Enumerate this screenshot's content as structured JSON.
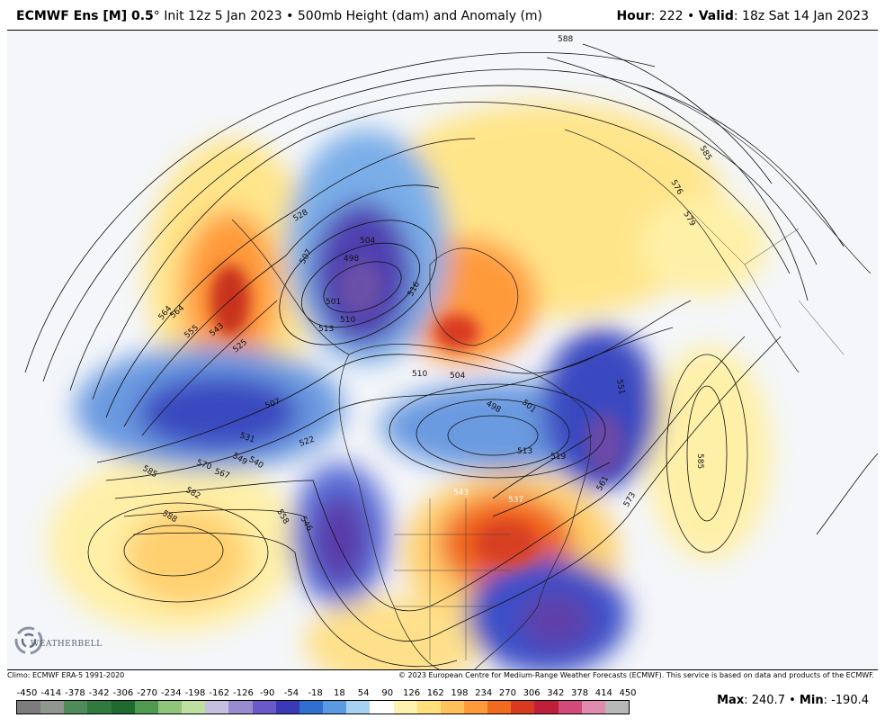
{
  "header": {
    "model": "ECMWF Ens [M] 0.5",
    "degree": "°",
    "init": "Init 12z 5 Jan 2023",
    "sep": "•",
    "field": "500mb Height (dam) and Anomaly (m)",
    "hour_label": "Hour",
    "hour_value": ": 222",
    "valid_label": "Valid",
    "valid_value": ": 18z Sat 14 Jan 2023"
  },
  "credits": {
    "climo": "Climo: ECMWF ERA-5 1991-2020",
    "copyright": "© 2023 European Centre for Medium-Range Weather Forecasts (ECMWF). This service is based on data and products of the ECMWF."
  },
  "logo": {
    "text": "WEATHERBELL"
  },
  "stats": {
    "max_label": "Max",
    "max_value": ": 240.7",
    "sep": "•",
    "min_label": "Min",
    "min_value": ": -190.4"
  },
  "colorbar": {
    "ticks": [
      "-450",
      "-414",
      "-378",
      "-342",
      "-306",
      "-270",
      "-234",
      "-198",
      "-162",
      "-126",
      "-90",
      "-54",
      "-18",
      "18",
      "54",
      "90",
      "126",
      "162",
      "198",
      "234",
      "270",
      "306",
      "342",
      "378",
      "414",
      "450"
    ],
    "colors": [
      "#7c7c7c",
      "#8f978f",
      "#4f8a5a",
      "#2f7a3f",
      "#1f6a2f",
      "#4f9a4f",
      "#8fc47a",
      "#bde0a0",
      "#c6c0e0",
      "#9a8ad0",
      "#6a5ac8",
      "#3a3ab8",
      "#2f6fd0",
      "#5a9ae0",
      "#a8d0f0",
      "#ffffff",
      "#fff2b0",
      "#ffe07a",
      "#ffc25a",
      "#ff9a3a",
      "#f06a20",
      "#d83a20",
      "#c01f3a",
      "#d04a7a",
      "#e08ab0",
      "#b8b8b8"
    ]
  },
  "contour_labels": [
    "588",
    "585",
    "576",
    "579",
    "582",
    "585",
    "588",
    "585",
    "570",
    "567",
    "564",
    "555",
    "543",
    "525",
    "528",
    "507",
    "504",
    "498",
    "501",
    "510",
    "513",
    "516",
    "510",
    "504",
    "498",
    "501",
    "507",
    "513",
    "519",
    "522",
    "531",
    "540",
    "549",
    "558",
    "546",
    "537",
    "543",
    "551",
    "561",
    "573",
    "564"
  ]
}
